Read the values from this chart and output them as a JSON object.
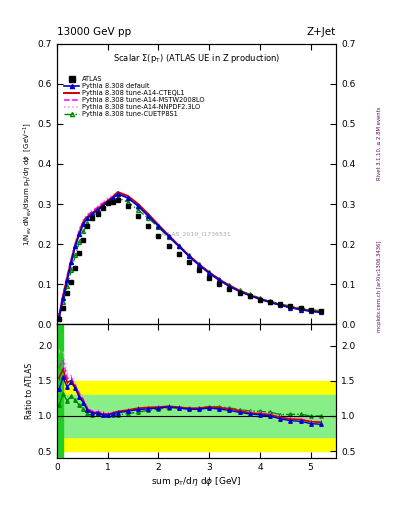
{
  "title_top": "13000 GeV pp",
  "title_right": "Z+Jet",
  "plot_title": "Scalar Σ(p_T) (ATLAS UE in Z production)",
  "watermark": "ATLAS_2019_I1736531",
  "ylabel_ratio": "Ratio to ATLAS",
  "xlabel": "sum p_T/dη dφ [GeV]",
  "right_label": "mcplots.cern.ch [arXiv:1306.3436]",
  "right_label2": "Rivet 3.1.10, ≥ 2.8M events",
  "ylim_main": [
    0.0,
    0.7
  ],
  "ylim_ratio": [
    0.4,
    2.3
  ],
  "xlim": [
    0.0,
    5.5
  ],
  "atlas_x": [
    0.04,
    0.12,
    0.2,
    0.28,
    0.36,
    0.44,
    0.52,
    0.6,
    0.7,
    0.8,
    0.9,
    1.0,
    1.1,
    1.2,
    1.4,
    1.6,
    1.8,
    2.0,
    2.2,
    2.4,
    2.6,
    2.8,
    3.0,
    3.2,
    3.4,
    3.6,
    3.8,
    4.0,
    4.2,
    4.4,
    4.6,
    4.8,
    5.0,
    5.2
  ],
  "atlas_y": [
    0.013,
    0.042,
    0.078,
    0.105,
    0.14,
    0.178,
    0.21,
    0.245,
    0.265,
    0.275,
    0.29,
    0.302,
    0.305,
    0.31,
    0.295,
    0.27,
    0.245,
    0.22,
    0.195,
    0.175,
    0.155,
    0.135,
    0.115,
    0.1,
    0.088,
    0.078,
    0.07,
    0.062,
    0.055,
    0.05,
    0.045,
    0.04,
    0.037,
    0.034
  ],
  "atlas_yerr": [
    0.002,
    0.003,
    0.004,
    0.004,
    0.005,
    0.005,
    0.005,
    0.005,
    0.005,
    0.005,
    0.005,
    0.005,
    0.005,
    0.005,
    0.004,
    0.004,
    0.004,
    0.004,
    0.004,
    0.003,
    0.003,
    0.003,
    0.003,
    0.003,
    0.003,
    0.002,
    0.002,
    0.002,
    0.002,
    0.002,
    0.002,
    0.002,
    0.002,
    0.002
  ],
  "py_default_x": [
    0.04,
    0.12,
    0.2,
    0.28,
    0.36,
    0.44,
    0.52,
    0.6,
    0.7,
    0.8,
    0.9,
    1.0,
    1.1,
    1.2,
    1.4,
    1.6,
    1.8,
    2.0,
    2.2,
    2.4,
    2.6,
    2.8,
    3.0,
    3.2,
    3.4,
    3.6,
    3.8,
    4.0,
    4.2,
    4.4,
    4.6,
    4.8,
    5.0,
    5.2
  ],
  "py_default_y": [
    0.018,
    0.065,
    0.11,
    0.155,
    0.195,
    0.225,
    0.25,
    0.265,
    0.275,
    0.285,
    0.295,
    0.305,
    0.315,
    0.325,
    0.315,
    0.295,
    0.27,
    0.245,
    0.22,
    0.195,
    0.17,
    0.148,
    0.128,
    0.11,
    0.095,
    0.082,
    0.072,
    0.063,
    0.055,
    0.048,
    0.042,
    0.037,
    0.033,
    0.03
  ],
  "py_cteql1_x": [
    0.04,
    0.12,
    0.2,
    0.28,
    0.36,
    0.44,
    0.52,
    0.6,
    0.7,
    0.8,
    0.9,
    1.0,
    1.1,
    1.2,
    1.4,
    1.6,
    1.8,
    2.0,
    2.2,
    2.4,
    2.6,
    2.8,
    3.0,
    3.2,
    3.4,
    3.6,
    3.8,
    4.0,
    4.2,
    4.4,
    4.6,
    4.8,
    5.0,
    5.2
  ],
  "py_cteql1_y": [
    0.02,
    0.07,
    0.115,
    0.158,
    0.198,
    0.228,
    0.255,
    0.268,
    0.278,
    0.288,
    0.298,
    0.308,
    0.318,
    0.33,
    0.32,
    0.3,
    0.275,
    0.248,
    0.222,
    0.197,
    0.172,
    0.15,
    0.13,
    0.112,
    0.097,
    0.084,
    0.073,
    0.064,
    0.056,
    0.049,
    0.043,
    0.038,
    0.034,
    0.031
  ],
  "py_mstw_x": [
    0.04,
    0.12,
    0.2,
    0.28,
    0.36,
    0.44,
    0.52,
    0.6,
    0.7,
    0.8,
    0.9,
    1.0,
    1.1,
    1.2,
    1.4,
    1.6,
    1.8,
    2.0,
    2.2,
    2.4,
    2.6,
    2.8,
    3.0,
    3.2,
    3.4,
    3.6,
    3.8,
    4.0,
    4.2,
    4.4,
    4.6,
    4.8,
    5.0,
    5.2
  ],
  "py_mstw_y": [
    0.022,
    0.075,
    0.12,
    0.162,
    0.2,
    0.235,
    0.258,
    0.272,
    0.282,
    0.292,
    0.302,
    0.31,
    0.318,
    0.328,
    0.315,
    0.295,
    0.27,
    0.245,
    0.22,
    0.195,
    0.17,
    0.148,
    0.128,
    0.11,
    0.095,
    0.083,
    0.073,
    0.064,
    0.056,
    0.049,
    0.043,
    0.038,
    0.034,
    0.031
  ],
  "py_nnpdf_x": [
    0.04,
    0.12,
    0.2,
    0.28,
    0.36,
    0.44,
    0.52,
    0.6,
    0.7,
    0.8,
    0.9,
    1.0,
    1.1,
    1.2,
    1.4,
    1.6,
    1.8,
    2.0,
    2.2,
    2.4,
    2.6,
    2.8,
    3.0,
    3.2,
    3.4,
    3.6,
    3.8,
    4.0,
    4.2,
    4.4,
    4.6,
    4.8,
    5.0,
    5.2
  ],
  "py_nnpdf_y": [
    0.025,
    0.08,
    0.125,
    0.165,
    0.205,
    0.238,
    0.262,
    0.275,
    0.285,
    0.295,
    0.305,
    0.315,
    0.322,
    0.33,
    0.318,
    0.298,
    0.272,
    0.248,
    0.222,
    0.198,
    0.173,
    0.15,
    0.13,
    0.112,
    0.097,
    0.084,
    0.074,
    0.065,
    0.057,
    0.05,
    0.044,
    0.039,
    0.035,
    0.032
  ],
  "py_cuetp_x": [
    0.04,
    0.12,
    0.2,
    0.28,
    0.36,
    0.44,
    0.52,
    0.6,
    0.7,
    0.8,
    0.9,
    1.0,
    1.1,
    1.2,
    1.4,
    1.6,
    1.8,
    2.0,
    2.2,
    2.4,
    2.6,
    2.8,
    3.0,
    3.2,
    3.4,
    3.6,
    3.8,
    4.0,
    4.2,
    4.4,
    4.6,
    4.8,
    5.0,
    5.2
  ],
  "py_cuetp_y": [
    0.015,
    0.055,
    0.095,
    0.135,
    0.172,
    0.205,
    0.232,
    0.252,
    0.268,
    0.282,
    0.295,
    0.305,
    0.31,
    0.315,
    0.305,
    0.285,
    0.265,
    0.242,
    0.218,
    0.195,
    0.172,
    0.15,
    0.13,
    0.113,
    0.098,
    0.085,
    0.075,
    0.066,
    0.058,
    0.051,
    0.046,
    0.041,
    0.037,
    0.034
  ],
  "color_atlas": "#000000",
  "color_default": "#0000cc",
  "color_cteql1": "#cc0000",
  "color_mstw": "#ff00ff",
  "color_nnpdf": "#ff88ff",
  "color_cuetp": "#008800",
  "ratio_green_lo": 0.7,
  "ratio_green_hi": 1.3,
  "ratio_yellow_lo": 0.5,
  "ratio_yellow_hi": 1.5,
  "legend_labels": [
    "ATLAS",
    "Pythia 8.308 default",
    "Pythia 8.308 tune-A14-CTEQL1",
    "Pythia 8.308 tune-A14-MSTW2008LO",
    "Pythia 8.308 tune-A14-NNPDF2.3LO",
    "Pythia 8.308 tune-CUETP8S1"
  ]
}
